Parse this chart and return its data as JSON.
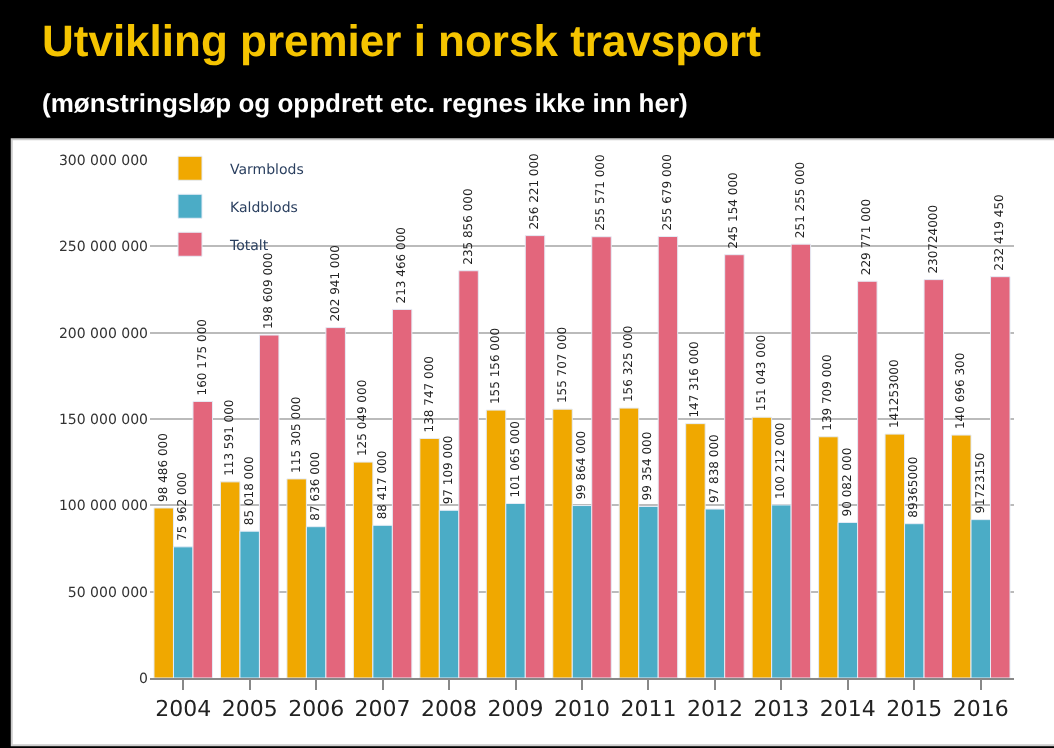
{
  "chart_data": {
    "type": "bar",
    "title": "Utvikling premier i norsk travsport",
    "subtitle": "(mønstringsløp og oppdrett etc. regnes ikke inn her)",
    "categories": [
      "2004",
      "2005",
      "2006",
      "2007",
      "2008",
      "2009",
      "2010",
      "2011",
      "2012",
      "2013",
      "2014",
      "2015",
      "2016"
    ],
    "series": [
      {
        "name": "Varmblods",
        "color": "#f0a800",
        "values": [
          98486000,
          113591000,
          115305000,
          125049000,
          138747000,
          155156000,
          155707000,
          156325000,
          147316000,
          151043000,
          139709000,
          141253000,
          140696300
        ],
        "value_labels": [
          "98 486 000",
          "113 591 000",
          "115 305 000",
          "125 049 000",
          "138 747 000",
          "155 156 000",
          "155 707 000",
          "156 325 000",
          "147 316 000",
          "151 043 000",
          "139 709 000",
          "141253000",
          "140 696 300"
        ]
      },
      {
        "name": "Kaldblods",
        "color": "#4bacc6",
        "values": [
          75962000,
          85018000,
          87636000,
          88417000,
          97109000,
          101065000,
          99864000,
          99354000,
          97838000,
          100212000,
          90082000,
          89365000,
          91723150
        ],
        "value_labels": [
          "75 962 000",
          "85 018 000",
          "87 636 000",
          "88 417 000",
          "97 109 000",
          "101 065 000",
          "99 864 000",
          "99 354 000",
          "97 838 000",
          "100 212 000",
          "90 082 000",
          "89365000",
          "91723150"
        ]
      },
      {
        "name": "Totalt",
        "color": "#e3667c",
        "values": [
          160175000,
          198609000,
          202941000,
          213466000,
          235856000,
          256221000,
          255571000,
          255679000,
          245154000,
          251255000,
          229771000,
          230724000,
          232419450
        ],
        "value_labels": [
          "160 175 000",
          "198 609 000",
          "202 941 000",
          "213 466 000",
          "235 856 000",
          "256 221 000",
          "255 571 000",
          "255 679 000",
          "245 154 000",
          "251 255 000",
          "229 771 000",
          "230724000",
          "232 419 450"
        ]
      }
    ],
    "ylim": [
      0,
      300000000
    ],
    "yticks": [
      {
        "value": 0,
        "label": "0"
      },
      {
        "value": 50000000,
        "label": "50 000 000"
      },
      {
        "value": 100000000,
        "label": "100 000 000"
      },
      {
        "value": 150000000,
        "label": "150 000 000"
      },
      {
        "value": 200000000,
        "label": "200 000 000"
      },
      {
        "value": 250000000,
        "label": "250 000 000"
      },
      {
        "value": 300000000,
        "label": "300 000 000"
      }
    ],
    "grid": "y",
    "legend": "top left"
  }
}
